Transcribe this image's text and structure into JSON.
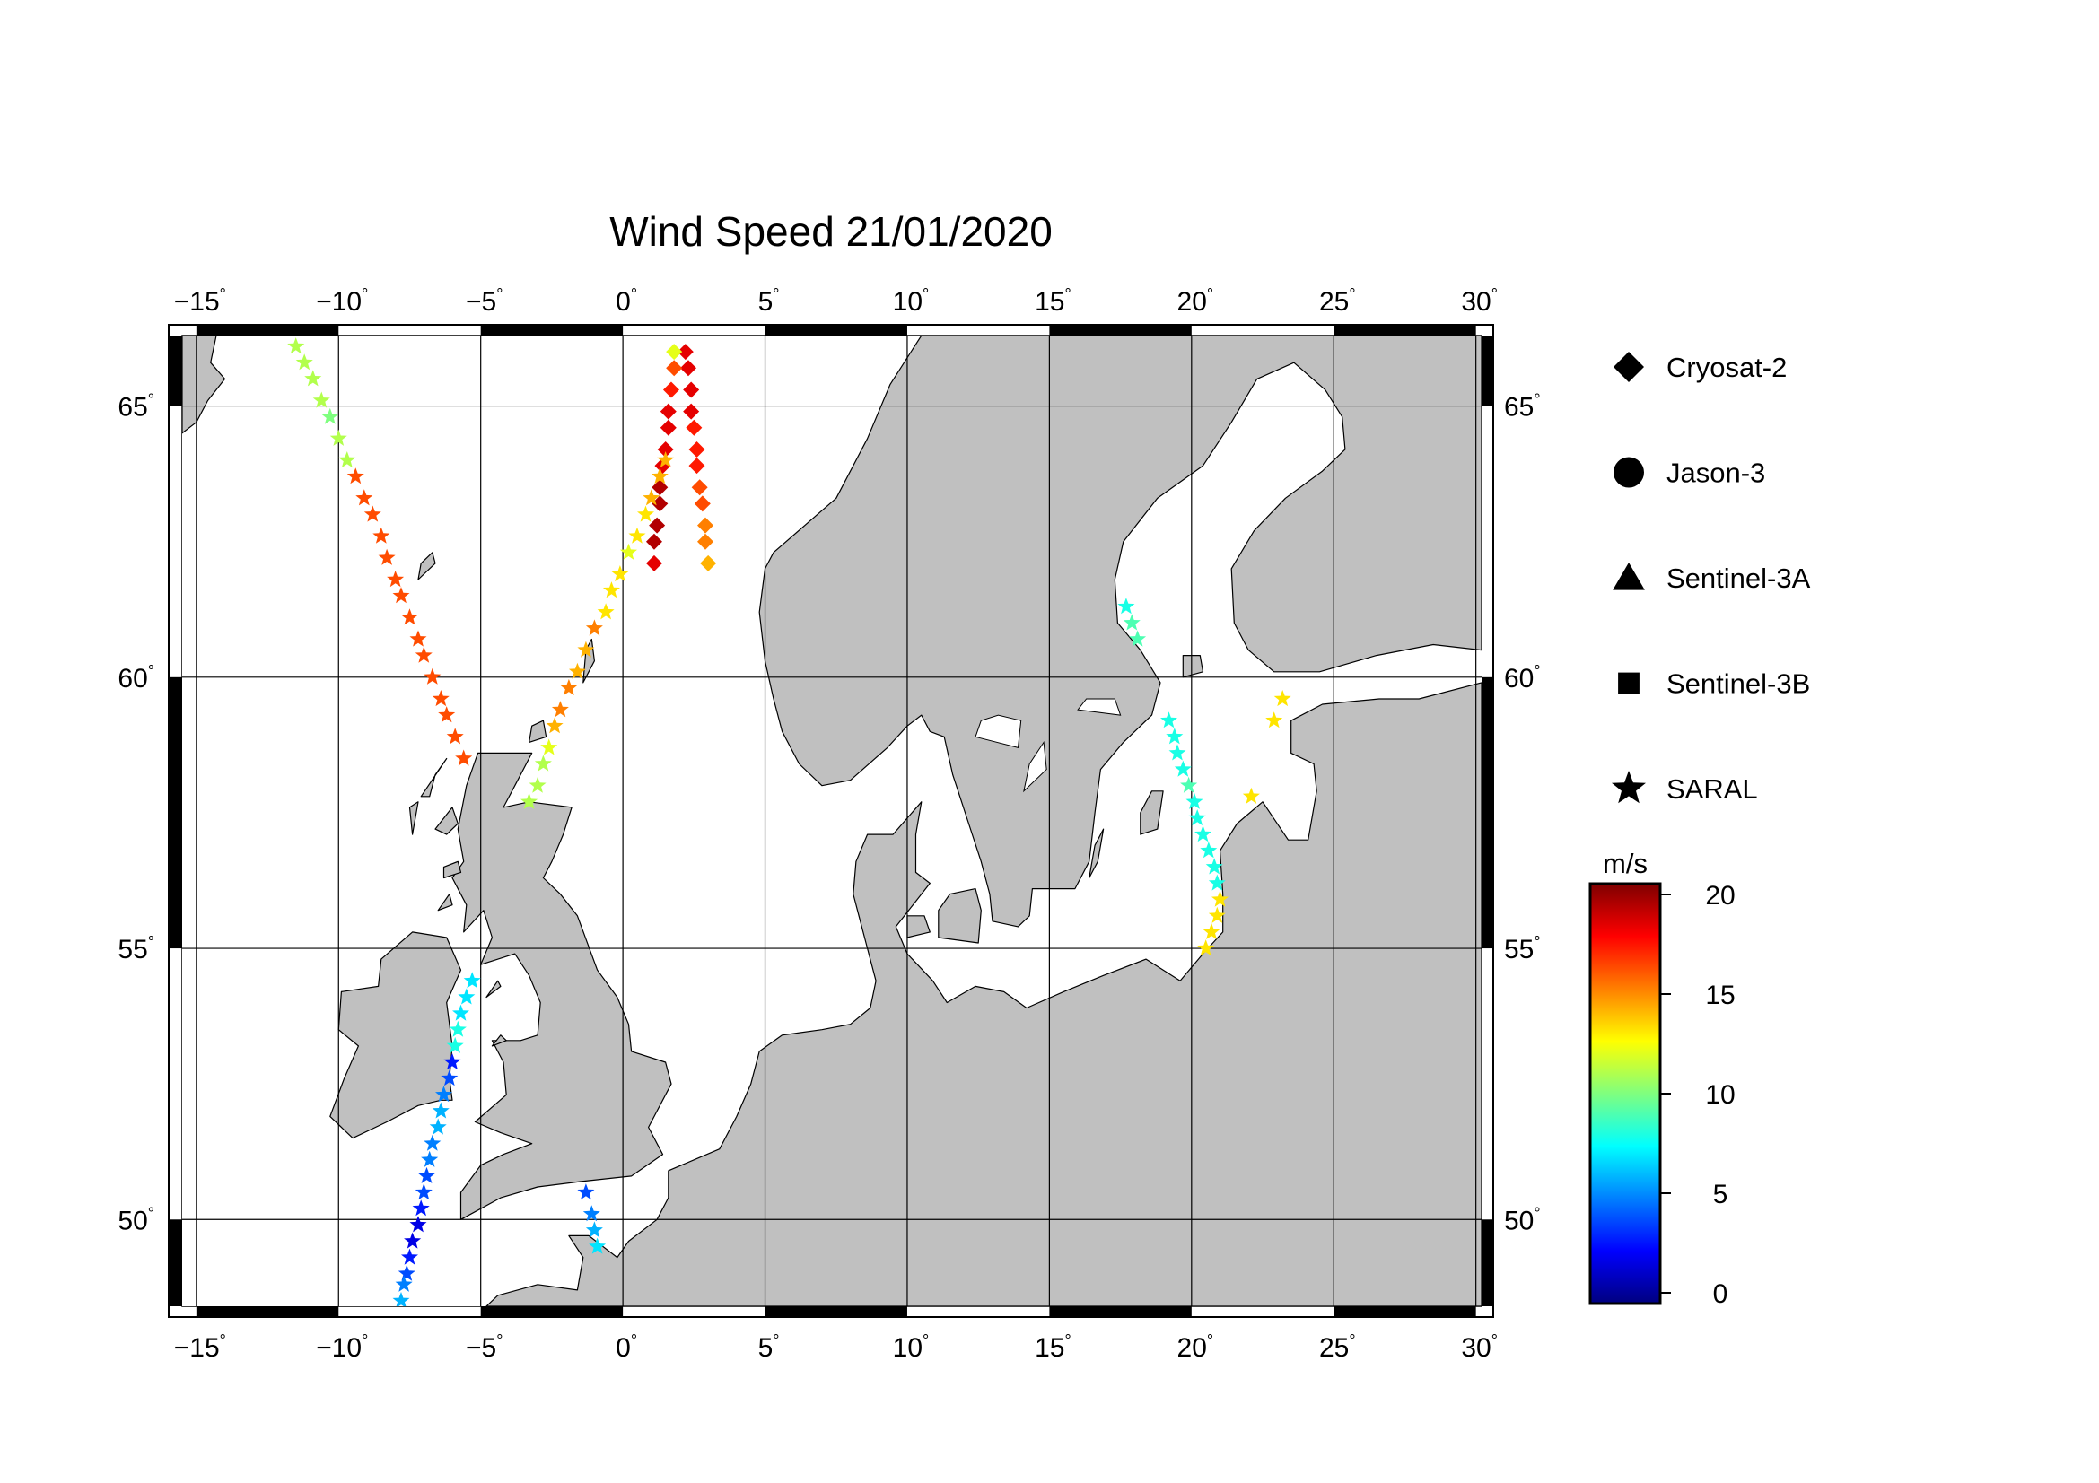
{
  "title": "Wind Speed 21/01/2020",
  "lon_ticks": [
    {
      "value": -15,
      "label": "−15"
    },
    {
      "value": -10,
      "label": "−10"
    },
    {
      "value": -5,
      "label": "−5"
    },
    {
      "value": 0,
      "label": "0"
    },
    {
      "value": 5,
      "label": "5"
    },
    {
      "value": 10,
      "label": "10"
    },
    {
      "value": 15,
      "label": "15"
    },
    {
      "value": 20,
      "label": "20"
    },
    {
      "value": 25,
      "label": "25"
    },
    {
      "value": 30,
      "label": "30"
    }
  ],
  "lat_ticks": [
    {
      "value": 50,
      "label": "50"
    },
    {
      "value": 55,
      "label": "55"
    },
    {
      "value": 60,
      "label": "60"
    },
    {
      "value": 65,
      "label": "65"
    }
  ],
  "degree_symbol": "°",
  "legend": [
    {
      "name": "Cryosat-2",
      "symbol": "diamond-icon"
    },
    {
      "name": "Jason-3",
      "symbol": "circle-icon"
    },
    {
      "name": "Sentinel-3A",
      "symbol": "triangle-icon"
    },
    {
      "name": "Sentinel-3B",
      "symbol": "square-icon"
    },
    {
      "name": "SARAL",
      "symbol": "star-icon"
    }
  ],
  "colorbar": {
    "unit": "m/s",
    "range": [
      0,
      20
    ],
    "ticks": [
      {
        "value": 20,
        "label": "20"
      },
      {
        "value": 15,
        "label": "15"
      },
      {
        "value": 10,
        "label": "10"
      },
      {
        "value": 5,
        "label": "5"
      },
      {
        "value": 0,
        "label": "0"
      }
    ],
    "colors": [
      "#00007f",
      "#0000ff",
      "#007fff",
      "#00ffff",
      "#7fff7f",
      "#ffff00",
      "#ff7f00",
      "#ff0000",
      "#7f0000"
    ]
  },
  "colors": {
    "land": "#c0c0c0",
    "sea": "#ffffff",
    "coast": "#000000",
    "grid": "#000000"
  },
  "chart_data": {
    "type": "scatter",
    "projection": "lon-lat map",
    "xlim": [
      -15.5,
      30.2
    ],
    "ylim": [
      48.4,
      66.3
    ],
    "grid": true,
    "tracks": [
      {
        "satellite": "Cryosat-2",
        "marker": "diamond",
        "points": [
          [
            2.2,
            66.0,
            18
          ],
          [
            2.3,
            65.7,
            18
          ],
          [
            2.4,
            65.3,
            18
          ],
          [
            2.4,
            64.9,
            18
          ],
          [
            2.5,
            64.6,
            17
          ],
          [
            2.6,
            64.2,
            17
          ],
          [
            2.6,
            63.9,
            17
          ],
          [
            2.7,
            63.5,
            16
          ],
          [
            2.8,
            63.2,
            16
          ],
          [
            2.9,
            62.8,
            15
          ],
          [
            2.9,
            62.5,
            15
          ],
          [
            3.0,
            62.1,
            14
          ]
        ]
      },
      {
        "satellite": "Cryosat-2",
        "marker": "diamond",
        "points": [
          [
            1.8,
            66.0,
            12
          ],
          [
            1.8,
            65.7,
            16
          ],
          [
            1.7,
            65.3,
            17
          ],
          [
            1.6,
            64.9,
            18
          ],
          [
            1.6,
            64.6,
            18
          ],
          [
            1.5,
            64.2,
            18
          ],
          [
            1.4,
            63.9,
            18
          ],
          [
            1.3,
            63.5,
            19
          ],
          [
            1.3,
            63.2,
            19
          ],
          [
            1.2,
            62.8,
            19
          ],
          [
            1.1,
            62.5,
            19
          ],
          [
            1.1,
            62.1,
            18
          ]
        ]
      },
      {
        "satellite": "SARAL",
        "marker": "star",
        "points": [
          [
            -11.5,
            66.1,
            11
          ],
          [
            -11.2,
            65.8,
            11
          ],
          [
            -10.9,
            65.5,
            11
          ],
          [
            -10.6,
            65.1,
            11
          ],
          [
            -10.3,
            64.8,
            10
          ],
          [
            -10.0,
            64.4,
            11
          ],
          [
            -9.7,
            64.0,
            11
          ],
          [
            -9.4,
            63.7,
            16
          ],
          [
            -9.1,
            63.3,
            16
          ],
          [
            -8.8,
            63.0,
            16
          ],
          [
            -8.5,
            62.6,
            16
          ],
          [
            -8.3,
            62.2,
            16
          ],
          [
            -8.0,
            61.8,
            16
          ],
          [
            -7.8,
            61.5,
            16
          ],
          [
            -7.5,
            61.1,
            16
          ],
          [
            -7.2,
            60.7,
            16
          ],
          [
            -7.0,
            60.4,
            16
          ],
          [
            -6.7,
            60.0,
            16
          ],
          [
            -6.4,
            59.6,
            16
          ],
          [
            -6.2,
            59.3,
            16
          ],
          [
            -5.9,
            58.9,
            16
          ],
          [
            -5.6,
            58.5,
            16
          ]
        ]
      },
      {
        "satellite": "SARAL",
        "marker": "star",
        "points": [
          [
            1.5,
            64.0,
            14
          ],
          [
            1.3,
            63.7,
            14
          ],
          [
            1.0,
            63.3,
            14
          ],
          [
            0.8,
            63.0,
            13
          ],
          [
            0.5,
            62.6,
            13
          ],
          [
            0.2,
            62.3,
            12
          ],
          [
            -0.1,
            61.9,
            13
          ],
          [
            -0.4,
            61.6,
            13
          ],
          [
            -0.6,
            61.2,
            13
          ],
          [
            -1.0,
            60.9,
            15
          ],
          [
            -1.3,
            60.5,
            14
          ],
          [
            -1.6,
            60.1,
            14
          ],
          [
            -1.9,
            59.8,
            15
          ],
          [
            -2.2,
            59.4,
            15
          ],
          [
            -2.4,
            59.1,
            14
          ],
          [
            -2.6,
            58.7,
            12
          ],
          [
            -2.8,
            58.4,
            11
          ],
          [
            -3.0,
            58.0,
            11
          ],
          [
            -3.3,
            57.7,
            11
          ]
        ]
      },
      {
        "satellite": "SARAL",
        "marker": "star",
        "points": [
          [
            -5.3,
            54.4,
            7
          ],
          [
            -5.5,
            54.1,
            7
          ],
          [
            -5.7,
            53.8,
            7
          ],
          [
            -5.8,
            53.5,
            8
          ],
          [
            -5.9,
            53.2,
            8
          ],
          [
            -6.0,
            52.9,
            3
          ],
          [
            -6.1,
            52.6,
            4
          ],
          [
            -6.3,
            52.3,
            5
          ],
          [
            -6.4,
            52.0,
            6
          ],
          [
            -6.5,
            51.7,
            6
          ],
          [
            -6.7,
            51.4,
            5
          ],
          [
            -6.8,
            51.1,
            5
          ],
          [
            -6.9,
            50.8,
            4
          ],
          [
            -7.0,
            50.5,
            4
          ],
          [
            -7.1,
            50.2,
            3
          ],
          [
            -7.2,
            49.9,
            2
          ],
          [
            -7.4,
            49.6,
            2
          ],
          [
            -7.5,
            49.3,
            3
          ],
          [
            -7.6,
            49.0,
            4
          ],
          [
            -7.7,
            48.8,
            5
          ],
          [
            -7.8,
            48.5,
            6
          ]
        ]
      },
      {
        "satellite": "SARAL",
        "marker": "star",
        "points": [
          [
            -1.3,
            50.5,
            4
          ],
          [
            -1.1,
            50.1,
            5
          ],
          [
            -1.0,
            49.8,
            6
          ],
          [
            -0.9,
            49.5,
            7
          ]
        ]
      },
      {
        "satellite": "SARAL",
        "marker": "star",
        "points": [
          [
            17.7,
            61.3,
            8
          ],
          [
            17.9,
            61.0,
            9
          ],
          [
            18.1,
            60.7,
            9
          ]
        ]
      },
      {
        "satellite": "SARAL",
        "marker": "star",
        "points": [
          [
            19.2,
            59.2,
            8
          ],
          [
            19.4,
            58.9,
            8
          ],
          [
            19.5,
            58.6,
            8
          ],
          [
            19.7,
            58.3,
            8
          ],
          [
            19.9,
            58.0,
            9
          ],
          [
            20.1,
            57.7,
            8
          ],
          [
            20.2,
            57.4,
            8
          ],
          [
            20.4,
            57.1,
            8
          ],
          [
            20.6,
            56.8,
            8
          ],
          [
            20.8,
            56.5,
            8
          ],
          [
            20.9,
            56.2,
            8
          ],
          [
            21.0,
            55.9,
            13
          ],
          [
            20.9,
            55.6,
            13
          ],
          [
            20.7,
            55.3,
            13
          ],
          [
            20.5,
            55.0,
            13
          ]
        ]
      },
      {
        "satellite": "SARAL",
        "marker": "star",
        "points": [
          [
            23.2,
            59.6,
            13
          ],
          [
            22.9,
            59.2,
            13
          ],
          [
            22.1,
            57.8,
            13
          ]
        ]
      }
    ]
  }
}
